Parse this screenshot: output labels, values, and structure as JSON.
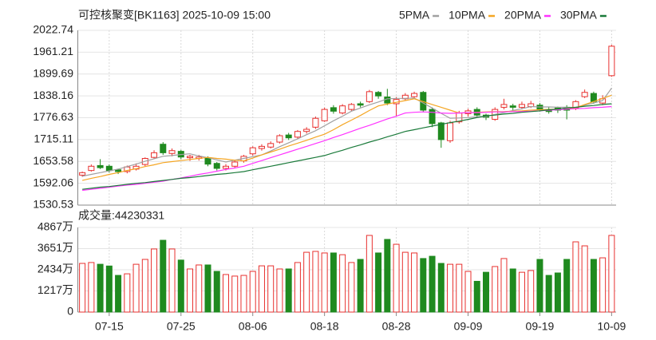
{
  "chart_data": [
    {
      "type": "candlestick",
      "title": "可控核聚变[BK1163] 2025-10-09 15:00",
      "categories": [
        null,
        null,
        null,
        "07-15",
        null,
        null,
        null,
        null,
        null,
        null,
        null,
        "07-25",
        null,
        null,
        null,
        null,
        null,
        null,
        null,
        "08-06",
        null,
        null,
        null,
        null,
        null,
        null,
        null,
        "08-18",
        null,
        null,
        null,
        null,
        null,
        null,
        null,
        "08-28",
        null,
        null,
        null,
        null,
        null,
        null,
        null,
        "09-09",
        null,
        null,
        null,
        null,
        null,
        null,
        null,
        "09-19",
        null,
        null,
        null,
        null,
        null,
        null,
        null,
        "10-09"
      ],
      "open": [
        1615,
        1628,
        1642,
        1640,
        1630,
        1625,
        1632,
        1645,
        1665,
        1702,
        1676,
        1682,
        1664,
        1662,
        1664,
        1648,
        1634,
        1640,
        1655,
        1675,
        1690,
        1694,
        1708,
        1728,
        1722,
        1738,
        1750,
        1768,
        1805,
        1790,
        1800,
        1816,
        1822,
        1848,
        1835,
        1816,
        1830,
        1836,
        1848,
        1800,
        1762,
        1712,
        1765,
        1788,
        1800,
        1784,
        1772,
        1806,
        1810,
        1806,
        1808,
        1812,
        1798,
        1804,
        1806,
        1804,
        1836,
        1845,
        1818,
        1895
      ],
      "high": [
        1625,
        1645,
        1660,
        1645,
        1633,
        1642,
        1648,
        1665,
        1685,
        1708,
        1690,
        1686,
        1672,
        1672,
        1668,
        1652,
        1646,
        1658,
        1672,
        1696,
        1702,
        1710,
        1730,
        1734,
        1742,
        1750,
        1780,
        1805,
        1812,
        1815,
        1818,
        1822,
        1855,
        1852,
        1858,
        1835,
        1846,
        1850,
        1852,
        1806,
        1765,
        1768,
        1796,
        1802,
        1806,
        1788,
        1806,
        1830,
        1816,
        1822,
        1824,
        1818,
        1806,
        1808,
        1812,
        1826,
        1856,
        1850,
        1840,
        1982
      ],
      "low": [
        1610,
        1625,
        1632,
        1622,
        1618,
        1620,
        1628,
        1640,
        1660,
        1672,
        1668,
        1660,
        1655,
        1656,
        1640,
        1628,
        1628,
        1636,
        1650,
        1670,
        1684,
        1690,
        1704,
        1714,
        1718,
        1732,
        1745,
        1765,
        1788,
        1786,
        1796,
        1806,
        1818,
        1830,
        1812,
        1780,
        1824,
        1830,
        1792,
        1750,
        1692,
        1706,
        1760,
        1780,
        1778,
        1770,
        1768,
        1800,
        1798,
        1800,
        1804,
        1794,
        1788,
        1790,
        1772,
        1798,
        1832,
        1816,
        1812,
        1892
      ],
      "close": [
        1622,
        1640,
        1636,
        1628,
        1625,
        1638,
        1640,
        1662,
        1678,
        1678,
        1684,
        1666,
        1668,
        1666,
        1646,
        1634,
        1640,
        1652,
        1668,
        1692,
        1696,
        1704,
        1726,
        1720,
        1738,
        1744,
        1775,
        1800,
        1795,
        1810,
        1814,
        1812,
        1850,
        1838,
        1818,
        1828,
        1840,
        1845,
        1798,
        1760,
        1715,
        1762,
        1790,
        1796,
        1784,
        1778,
        1800,
        1814,
        1806,
        1814,
        1816,
        1800,
        1794,
        1798,
        1798,
        1822,
        1848,
        1822,
        1830,
        1978
      ],
      "series": [
        {
          "name": "5PMA",
          "color": "#a0a0a0",
          "values": [
            1612,
            1617,
            1622,
            1627,
            1632,
            1639,
            1646,
            1654,
            1661,
            1668,
            1670,
            1673,
            1675,
            1669,
            1664,
            1658,
            1652,
            1657,
            1662,
            1667,
            1672,
            1683,
            1695,
            1706,
            1717,
            1729,
            1740,
            1754,
            1768,
            1781,
            1795,
            1804,
            1813,
            1821,
            1830,
            1831,
            1831,
            1832,
            1818,
            1804,
            1789,
            1775,
            1776,
            1777,
            1779,
            1780,
            1786,
            1791,
            1797,
            1802,
            1808,
            1807,
            1807,
            1806,
            1806,
            1805,
            1812,
            1818,
            1825,
            1860
          ]
        },
        {
          "name": "10PMA",
          "color": "#f5a623",
          "values": [
            1600,
            1606,
            1611,
            1617,
            1622,
            1628,
            1633,
            1639,
            1644,
            1650,
            1653,
            1656,
            1659,
            1662,
            1665,
            1662,
            1660,
            1657,
            1655,
            1663,
            1672,
            1680,
            1688,
            1697,
            1705,
            1713,
            1722,
            1730,
            1743,
            1757,
            1770,
            1783,
            1797,
            1810,
            1815,
            1820,
            1825,
            1830,
            1822,
            1814,
            1806,
            1798,
            1790,
            1791,
            1792,
            1793,
            1794,
            1794,
            1795,
            1796,
            1798,
            1799,
            1800,
            1801,
            1803,
            1805,
            1814,
            1822,
            1831,
            1840
          ]
        },
        {
          "name": "20PMA",
          "color": "#ff33ff",
          "values": [
            1572,
            1575,
            1578,
            1581,
            1584,
            1587,
            1589,
            1592,
            1595,
            1598,
            1603,
            1607,
            1612,
            1617,
            1621,
            1626,
            1631,
            1635,
            1640,
            1648,
            1656,
            1664,
            1672,
            1680,
            1688,
            1696,
            1704,
            1712,
            1721,
            1729,
            1738,
            1747,
            1755,
            1764,
            1773,
            1781,
            1790,
            1792,
            1793,
            1792,
            1790,
            1789,
            1790,
            1791,
            1791,
            1792,
            1793,
            1793,
            1794,
            1794,
            1795,
            1796,
            1798,
            1799,
            1801,
            1802,
            1803,
            1805,
            1806,
            1808
          ]
        },
        {
          "name": "30PMA",
          "color": "#1a7a3a",
          "values": [
            1575,
            1578,
            1581,
            1583,
            1586,
            1589,
            1592,
            1594,
            1597,
            1600,
            1603,
            1606,
            1608,
            1611,
            1614,
            1617,
            1619,
            1622,
            1625,
            1630,
            1635,
            1640,
            1645,
            1650,
            1655,
            1660,
            1665,
            1670,
            1678,
            1685,
            1693,
            1700,
            1708,
            1715,
            1723,
            1730,
            1738,
            1743,
            1748,
            1753,
            1758,
            1763,
            1767,
            1772,
            1777,
            1782,
            1784,
            1787,
            1789,
            1792,
            1794,
            1796,
            1799,
            1801,
            1804,
            1806,
            1809,
            1811,
            1814,
            1816
          ]
        }
      ],
      "up_color": "#e8312f",
      "down_color": "#1f8a1f",
      "ylim": [
        1530.53,
        2022.74
      ],
      "yticks": [
        1530.53,
        1592.06,
        1653.58,
        1715.11,
        1776.63,
        1838.16,
        1899.69,
        1961.21,
        2022.74
      ],
      "grid": true
    },
    {
      "type": "bar",
      "title": "成交量:44230331",
      "values": [
        2800,
        2850,
        2750,
        2650,
        2110,
        2200,
        2750,
        3030,
        3630,
        4130,
        3630,
        2990,
        2480,
        2710,
        2710,
        2340,
        2160,
        2070,
        2110,
        2340,
        2660,
        2660,
        2480,
        2480,
        2850,
        3440,
        3490,
        3400,
        3400,
        3300,
        2850,
        3030,
        4410,
        3400,
        4180,
        3900,
        3440,
        3400,
        3080,
        3210,
        2800,
        2750,
        2750,
        2340,
        1770,
        2290,
        2620,
        3080,
        2480,
        2290,
        2390,
        3030,
        2110,
        2250,
        3030,
        4040,
        3810,
        3030,
        3120,
        4410
      ],
      "ylim": [
        0,
        4867
      ],
      "yticks": [
        0,
        {
          "value": 1217,
          "label": "1217万"
        },
        {
          "value": 2434,
          "label": "2434万"
        },
        {
          "value": 3651,
          "label": "3651万"
        },
        {
          "value": 4867,
          "label": "4867万"
        }
      ],
      "grid": true
    }
  ]
}
